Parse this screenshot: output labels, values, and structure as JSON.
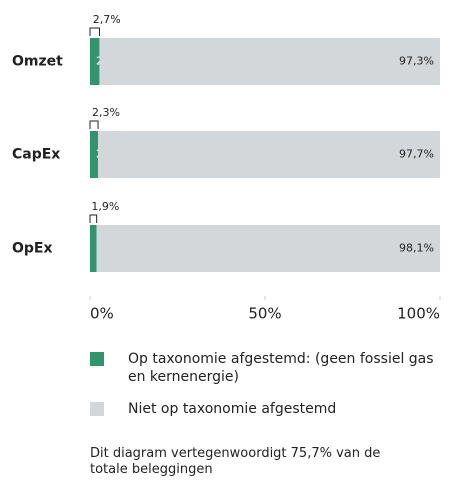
{
  "chart_data": {
    "type": "stacked_barh",
    "categories": [
      "Omzet",
      "CapEx",
      "OpEx"
    ],
    "series": [
      {
        "name": "Op taxonomie afgestemd: (geen fossiel gas en kernenergie)",
        "color": "#34936f",
        "values": [
          2.7,
          2.3,
          1.9
        ],
        "value_labels": [
          "2,7%",
          "2,3%",
          "1,9%"
        ]
      },
      {
        "name": "Niet op taxonomie afgestemd",
        "color": "#d4d7d9",
        "values": [
          97.3,
          97.7,
          98.1
        ],
        "value_labels": [
          "97,3%",
          "97,7%",
          "98,1%"
        ]
      }
    ],
    "xlim": [
      0,
      100
    ],
    "xticks": [
      {
        "value": 0,
        "label": "0%"
      },
      {
        "value": 50,
        "label": "50%"
      },
      {
        "value": 100,
        "label": "100%"
      }
    ],
    "note": "Dit diagram vertegenwoordigt 75,7% van de totale beleggingen"
  }
}
